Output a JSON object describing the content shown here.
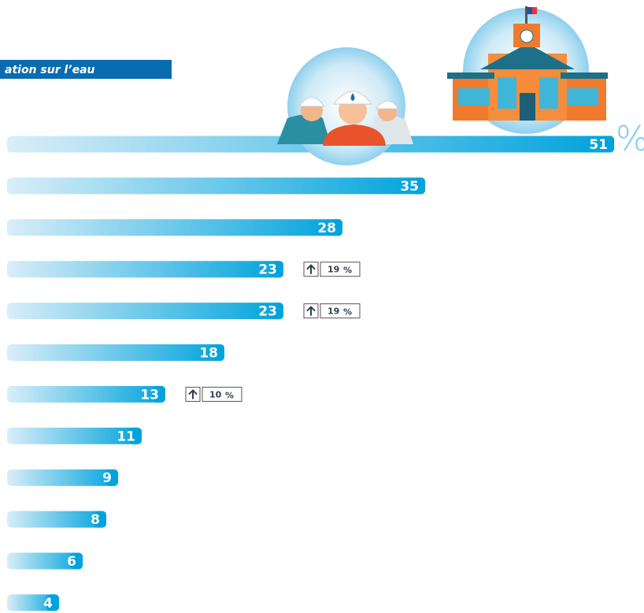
{
  "chart_data": {
    "type": "bar",
    "orientation": "horizontal",
    "title": "ation sur l’eau",
    "categories": [
      null,
      null,
      null,
      null,
      null,
      null,
      null,
      null,
      null,
      null,
      null,
      null
    ],
    "values": [
      51,
      35,
      28,
      23,
      23,
      18,
      13,
      11,
      9,
      8,
      6,
      4
    ],
    "unit_label": "%",
    "increases": [
      null,
      null,
      null,
      19,
      19,
      null,
      10,
      null,
      null,
      null,
      null,
      null
    ],
    "increase_unit": "%",
    "color": "#00a3dc",
    "xlim": [
      0,
      52
    ]
  }
}
